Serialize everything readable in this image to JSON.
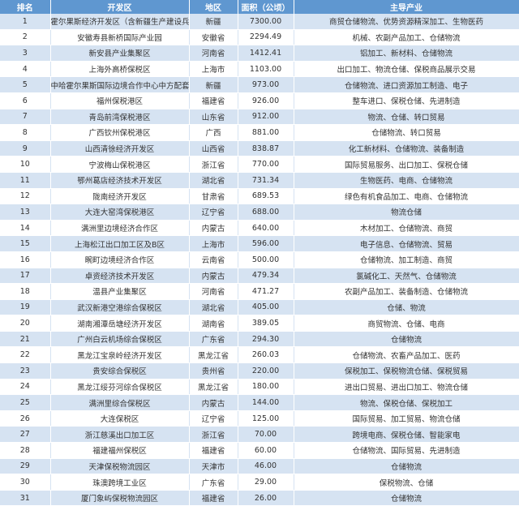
{
  "header": {
    "rank": "排名",
    "zone": "开发区",
    "region": "地区",
    "area": "面积（公顷）",
    "industry": "主导产业"
  },
  "colors": {
    "header_bg": "#5f97d0",
    "stripe": "#d6e3f2"
  },
  "rows": [
    {
      "rank": "1",
      "zone": "霍尔果斯经济开发区（含新疆生产建设兵团片区）",
      "region": "新疆",
      "area": "7300.00",
      "industry": "商贸仓储物流、优势资源精深加工、生物医药"
    },
    {
      "rank": "2",
      "zone": "安徽寿县新桥国际产业园",
      "region": "安徽省",
      "area": "2294.49",
      "industry": "机械、农副产品加工、仓储物流"
    },
    {
      "rank": "3",
      "zone": "新安县产业集聚区",
      "region": "河南省",
      "area": "1412.41",
      "industry": "铝加工、新材料、仓储物流"
    },
    {
      "rank": "4",
      "zone": "上海外高桥保税区",
      "region": "上海市",
      "area": "1103.00",
      "industry": "出口加工、物流仓储、保税商品展示交易"
    },
    {
      "rank": "5",
      "zone": "中哈霍尔果斯国际边境合作中心中方配套区",
      "region": "新疆",
      "area": "973.00",
      "industry": "仓储物流、进口资源加工制造、电子"
    },
    {
      "rank": "6",
      "zone": "福州保税港区",
      "region": "福建省",
      "area": "926.00",
      "industry": "整车进口、保税仓储、先进制造"
    },
    {
      "rank": "7",
      "zone": "青岛前湾保税港区",
      "region": "山东省",
      "area": "912.00",
      "industry": "物流、仓储、转口贸易"
    },
    {
      "rank": "8",
      "zone": "广西钦州保税港区",
      "region": "广西",
      "area": "881.00",
      "industry": "仓储物流、转口贸易"
    },
    {
      "rank": "9",
      "zone": "山西清徐经济开发区",
      "region": "山西省",
      "area": "838.87",
      "industry": "化工新材料、仓储物流、装备制造"
    },
    {
      "rank": "10",
      "zone": "宁波梅山保税港区",
      "region": "浙江省",
      "area": "770.00",
      "industry": "国际贸易服务、出口加工、保税仓储"
    },
    {
      "rank": "11",
      "zone": "鄂州葛店经济技术开发区",
      "region": "湖北省",
      "area": "731.34",
      "industry": "生物医药、电商、仓储物流"
    },
    {
      "rank": "12",
      "zone": "陇南经济开发区",
      "region": "甘肃省",
      "area": "689.53",
      "industry": "绿色有机食品加工、电商、仓储物流"
    },
    {
      "rank": "13",
      "zone": "大连大窑湾保税港区",
      "region": "辽宁省",
      "area": "688.00",
      "industry": "物流仓储"
    },
    {
      "rank": "14",
      "zone": "满洲里边境经济合作区",
      "region": "内蒙古",
      "area": "640.00",
      "industry": "木材加工、仓储物流、商贸"
    },
    {
      "rank": "15",
      "zone": "上海松江出口加工区及B区",
      "region": "上海市",
      "area": "596.00",
      "industry": "电子信息、仓储物流、贸易"
    },
    {
      "rank": "16",
      "zone": "畹町边境经济合作区",
      "region": "云南省",
      "area": "500.00",
      "industry": "仓储物流、加工制造、商贸"
    },
    {
      "rank": "17",
      "zone": "卓资经济技术开发区",
      "region": "内蒙古",
      "area": "479.34",
      "industry": "氯碱化工、天然气、仓储物流"
    },
    {
      "rank": "18",
      "zone": "温县产业集聚区",
      "region": "河南省",
      "area": "471.27",
      "industry": "农副产品加工、装备制造、仓储物流"
    },
    {
      "rank": "19",
      "zone": "武汉新港空港综合保税区",
      "region": "湖北省",
      "area": "405.00",
      "industry": "仓储、物流"
    },
    {
      "rank": "20",
      "zone": "湖南湘潭岳塘经济开发区",
      "region": "湖南省",
      "area": "389.05",
      "industry": "商贸物流、仓储、电商"
    },
    {
      "rank": "21",
      "zone": "广州白云机场综合保税区",
      "region": "广东省",
      "area": "294.30",
      "industry": "仓储物流"
    },
    {
      "rank": "22",
      "zone": "黑龙江宝泉岭经济开发区",
      "region": "黑龙江省",
      "area": "260.03",
      "industry": "仓储物流、农畜产品加工、医药"
    },
    {
      "rank": "23",
      "zone": "贵安综合保税区",
      "region": "贵州省",
      "area": "220.00",
      "industry": "保税加工、保税物流仓储、保税贸易"
    },
    {
      "rank": "24",
      "zone": "黑龙江绥芬河综合保税区",
      "region": "黑龙江省",
      "area": "180.00",
      "industry": "进出口贸易、进出口加工、物流仓储"
    },
    {
      "rank": "25",
      "zone": "满洲里综合保税区",
      "region": "内蒙古",
      "area": "144.00",
      "industry": "物流、保税仓储、保税加工"
    },
    {
      "rank": "26",
      "zone": "大连保税区",
      "region": "辽宁省",
      "area": "125.00",
      "industry": "国际贸易、加工贸易、物流仓储"
    },
    {
      "rank": "27",
      "zone": "浙江慈溪出口加工区",
      "region": "浙江省",
      "area": "70.00",
      "industry": "跨境电商、保税仓储、智能家电"
    },
    {
      "rank": "28",
      "zone": "福建福州保税区",
      "region": "福建省",
      "area": "60.00",
      "industry": "仓储物流、国际贸易、先进制造"
    },
    {
      "rank": "29",
      "zone": "天津保税物流园区",
      "region": "天津市",
      "area": "46.00",
      "industry": "仓储物流"
    },
    {
      "rank": "30",
      "zone": "珠澳跨境工业区",
      "region": "广东省",
      "area": "29.00",
      "industry": "保税物流、仓储"
    },
    {
      "rank": "31",
      "zone": "厦门象屿保税物流园区",
      "region": "福建省",
      "area": "26.00",
      "industry": "仓储物流"
    }
  ]
}
